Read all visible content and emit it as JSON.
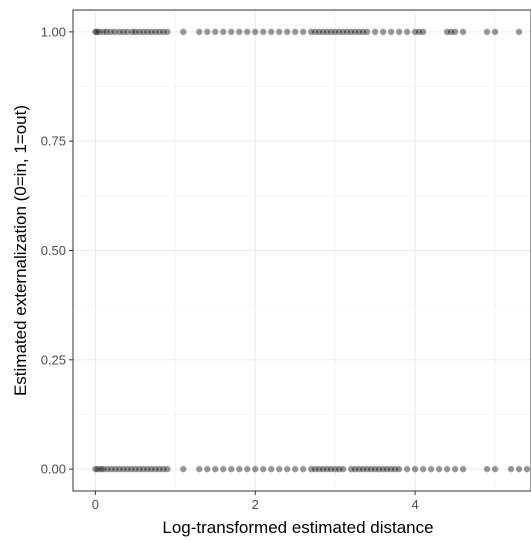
{
  "chart_data": {
    "type": "scatter",
    "title": "",
    "xlabel": "Log-transformed estimated distance",
    "ylabel": "Estimated externalization (0=in, 1=out)",
    "xlim": [
      -0.28,
      5.45
    ],
    "ylim": [
      -0.05,
      1.05
    ],
    "x_ticks": [
      0,
      2,
      4
    ],
    "x_tick_labels": [
      "0",
      "2",
      "4"
    ],
    "y_ticks": [
      0,
      0.25,
      0.5,
      0.75,
      1
    ],
    "y_tick_labels": [
      "0.00",
      "0.25",
      "0.50",
      "0.75",
      "1.00"
    ],
    "grid": true,
    "point_color": "#000000",
    "point_opacity": 0.4,
    "series": [
      {
        "y": 1,
        "x": [
          0.0,
          0.02,
          0.05,
          0.1,
          0.14,
          0.19,
          0.24,
          0.3,
          0.35,
          0.4,
          0.46,
          0.5,
          0.55,
          0.6,
          0.65,
          0.7,
          0.75,
          0.8,
          0.85,
          0.9,
          1.1,
          1.3,
          1.4,
          1.5,
          1.6,
          1.7,
          1.8,
          1.9,
          2.0,
          2.1,
          2.2,
          2.3,
          2.4,
          2.5,
          2.6,
          2.7,
          2.75,
          2.8,
          2.85,
          2.9,
          2.95,
          3.0,
          3.05,
          3.1,
          3.15,
          3.2,
          3.25,
          3.3,
          3.35,
          3.4,
          3.5,
          3.6,
          3.7,
          3.8,
          3.9,
          4.0,
          4.05,
          4.1,
          4.4,
          4.45,
          4.5,
          4.6,
          4.9,
          5.0,
          5.3
        ]
      },
      {
        "y": 0,
        "x": [
          0.0,
          0.03,
          0.07,
          0.1,
          0.15,
          0.2,
          0.25,
          0.3,
          0.35,
          0.4,
          0.45,
          0.5,
          0.55,
          0.6,
          0.65,
          0.7,
          0.75,
          0.8,
          0.85,
          0.9,
          1.1,
          1.3,
          1.4,
          1.5,
          1.6,
          1.7,
          1.8,
          1.9,
          2.0,
          2.1,
          2.2,
          2.3,
          2.4,
          2.5,
          2.6,
          2.7,
          2.75,
          2.8,
          2.85,
          2.9,
          2.95,
          3.0,
          3.05,
          3.1,
          3.2,
          3.25,
          3.3,
          3.35,
          3.4,
          3.45,
          3.5,
          3.55,
          3.6,
          3.65,
          3.7,
          3.75,
          3.8,
          3.9,
          4.0,
          4.1,
          4.2,
          4.3,
          4.4,
          4.5,
          4.6,
          4.9,
          5.0,
          5.2,
          5.3,
          5.4
        ]
      }
    ]
  }
}
